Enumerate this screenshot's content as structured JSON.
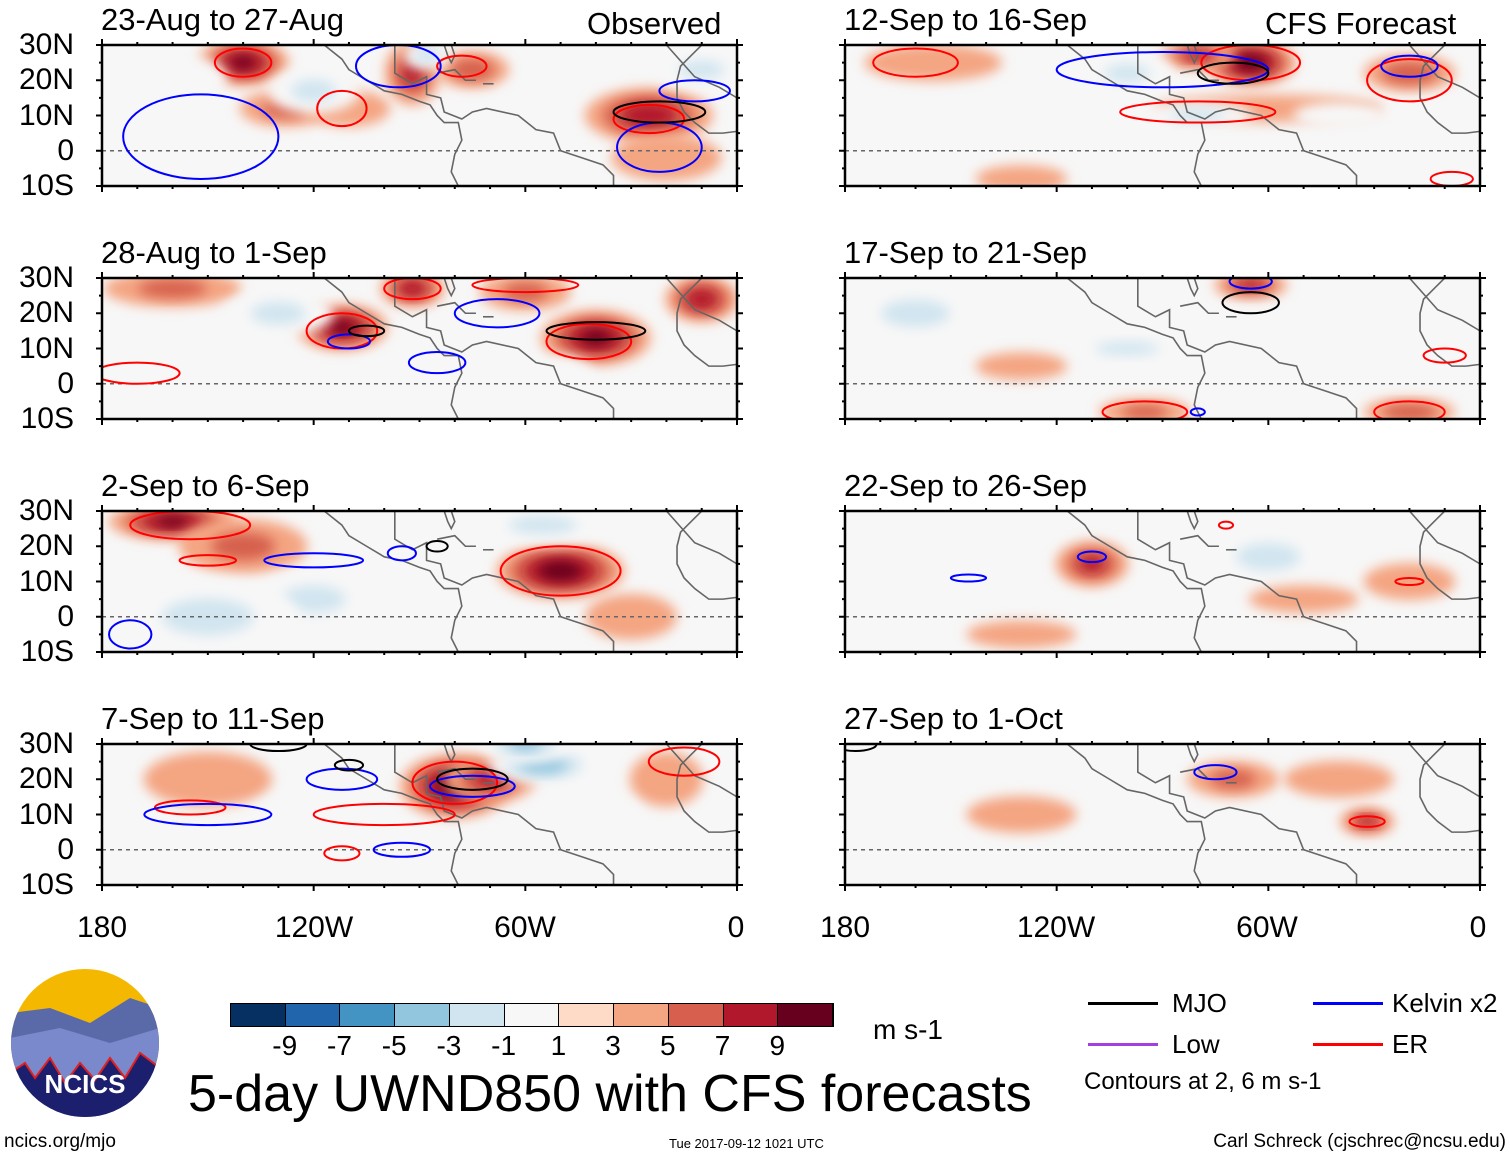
{
  "colorbar": {
    "colors": [
      "#053061",
      "#2166ac",
      "#4393c3",
      "#92c5de",
      "#d1e5f0",
      "#f7f7f7",
      "#fddbc7",
      "#f4a582",
      "#d6604d",
      "#b2182b",
      "#67001f"
    ],
    "labels": [
      "-9",
      "-7",
      "-5",
      "-3",
      "-1",
      "1",
      "3",
      "5",
      "7",
      "9"
    ],
    "units": "m s-1"
  },
  "title": "5-day UWND850 with CFS forecasts",
  "logo_text": "NCICS",
  "footer": {
    "url": "ncics.org/mjo",
    "timestamp": "Tue 2017-09-12 1021 UTC",
    "author": "Carl Schreck (cjschrec@ncsu.edu)"
  },
  "legend": {
    "mjo": "MJO",
    "kelvin": "Kelvin x2",
    "low": "Low",
    "er": "ER",
    "note": "Contours at 2, 6 m s-1",
    "colors": {
      "mjo": "#000000",
      "kelvin": "#0000ff",
      "low": "#a040e0",
      "er": "#ff0000"
    }
  },
  "axes": {
    "lat_labels": [
      "30N",
      "20N",
      "10N",
      "0",
      "10S"
    ],
    "lon_labels": [
      "180",
      "120W",
      "60W",
      "0"
    ]
  },
  "column_labels": {
    "left": "Observed",
    "right": "CFS Forecast"
  },
  "chart_data": {
    "type": "heatmap",
    "variable": "850-hPa zonal wind anomaly",
    "units": "m s-1",
    "lon_range": [
      -180,
      0
    ],
    "lat_range": [
      -10,
      30
    ],
    "panels": [
      {
        "title": "23-Aug to 27-Aug",
        "col": 0,
        "row": 0,
        "anoms": [
          [
            -140,
            25,
            10,
            5,
            7
          ],
          [
            -128,
            12,
            10,
            4,
            3
          ],
          [
            -92,
            22,
            6,
            7,
            5
          ],
          [
            -25,
            10,
            14,
            6,
            6
          ],
          [
            -110,
            12,
            9,
            4,
            2
          ],
          [
            -20,
            -2,
            12,
            5,
            2
          ],
          [
            -75,
            23,
            8,
            4,
            4
          ],
          [
            -120,
            17,
            10,
            5,
            -3
          ],
          [
            -88,
            27,
            5,
            3,
            -4
          ],
          [
            -10,
            23,
            10,
            4,
            -3
          ],
          [
            -160,
            20,
            12,
            6,
            -2
          ],
          [
            -60,
            5,
            6,
            4,
            -2
          ]
        ],
        "contours": [
          [
            "er",
            -140,
            25,
            8,
            4
          ],
          [
            "er",
            -112,
            12,
            7,
            5
          ],
          [
            "er",
            -78,
            24,
            7,
            3
          ],
          [
            "er",
            -25,
            9,
            10,
            4
          ],
          [
            "kelvin",
            -152,
            4,
            22,
            12
          ],
          [
            "kelvin",
            -96,
            24,
            12,
            6
          ],
          [
            "kelvin",
            -22,
            1,
            12,
            7
          ],
          [
            "kelvin",
            -12,
            17,
            10,
            3
          ],
          [
            "mjo",
            -22,
            11,
            13,
            3
          ]
        ]
      },
      {
        "title": "28-Aug to 1-Sep",
        "col": 0,
        "row": 1,
        "anoms": [
          [
            -112,
            16,
            10,
            5,
            7
          ],
          [
            -92,
            27,
            7,
            4,
            6
          ],
          [
            -40,
            13,
            12,
            6,
            7
          ],
          [
            -10,
            24,
            8,
            5,
            6
          ],
          [
            -160,
            27,
            15,
            4,
            3
          ],
          [
            -60,
            26,
            10,
            4,
            3
          ],
          [
            -130,
            20,
            12,
            5,
            -3
          ],
          [
            -80,
            -5,
            10,
            4,
            -2
          ],
          [
            -150,
            -5,
            15,
            5,
            -2
          ],
          [
            -50,
            0,
            8,
            6,
            -1
          ]
        ],
        "contours": [
          [
            "er",
            -112,
            15,
            10,
            5
          ],
          [
            "er",
            -92,
            27,
            8,
            3
          ],
          [
            "er",
            -42,
            12,
            12,
            5
          ],
          [
            "er",
            -170,
            3,
            12,
            3
          ],
          [
            "er",
            -60,
            28,
            15,
            2
          ],
          [
            "kelvin",
            -110,
            12,
            6,
            2
          ],
          [
            "kelvin",
            -68,
            20,
            12,
            4
          ],
          [
            "kelvin",
            -85,
            6,
            8,
            3
          ],
          [
            "mjo",
            -105,
            15,
            5,
            1.5
          ],
          [
            "mjo",
            -40,
            15,
            14,
            2.5
          ]
        ]
      },
      {
        "title": "2-Sep to 6-Sep",
        "col": 0,
        "row": 2,
        "anoms": [
          [
            -160,
            27,
            14,
            4,
            7
          ],
          [
            -50,
            13,
            14,
            6,
            8
          ],
          [
            -140,
            20,
            14,
            6,
            3
          ],
          [
            -120,
            5,
            14,
            6,
            -3
          ],
          [
            -150,
            0,
            20,
            8,
            -3
          ],
          [
            -55,
            26,
            15,
            4,
            -3
          ],
          [
            -90,
            -5,
            10,
            4,
            -2
          ],
          [
            -30,
            0,
            10,
            5,
            2
          ]
        ],
        "contours": [
          [
            "er",
            -155,
            26,
            17,
            4
          ],
          [
            "er",
            -50,
            13,
            17,
            7
          ],
          [
            "er",
            -150,
            16,
            8,
            1.5
          ],
          [
            "kelvin",
            -120,
            16,
            14,
            2
          ],
          [
            "kelvin",
            -95,
            18,
            4,
            2
          ],
          [
            "kelvin",
            -172,
            -5,
            6,
            4
          ],
          [
            "mjo",
            -85,
            20,
            3,
            1.5
          ]
        ]
      },
      {
        "title": "7-Sep to 11-Sep",
        "col": 0,
        "row": 3,
        "anoms": [
          [
            -80,
            18,
            12,
            7,
            8
          ],
          [
            -70,
            20,
            10,
            5,
            5
          ],
          [
            -55,
            24,
            12,
            4,
            -6
          ],
          [
            -60,
            30,
            10,
            4,
            -5
          ],
          [
            -150,
            20,
            14,
            6,
            2
          ],
          [
            -120,
            10,
            14,
            4,
            -2
          ],
          [
            -20,
            20,
            8,
            6,
            2
          ],
          [
            -40,
            10,
            10,
            4,
            -2
          ]
        ],
        "contours": [
          [
            "er",
            -80,
            19,
            12,
            6
          ],
          [
            "er",
            -100,
            10,
            20,
            3
          ],
          [
            "er",
            -155,
            12,
            10,
            2
          ],
          [
            "er",
            -15,
            25,
            10,
            4
          ],
          [
            "er",
            -112,
            -1,
            5,
            2
          ],
          [
            "kelvin",
            -112,
            20,
            10,
            3
          ],
          [
            "kelvin",
            -150,
            10,
            18,
            3
          ],
          [
            "kelvin",
            -75,
            18,
            12,
            3
          ],
          [
            "kelvin",
            -95,
            0,
            8,
            2
          ],
          [
            "mjo",
            -75,
            20,
            10,
            3
          ],
          [
            "mjo",
            -110,
            24,
            4,
            1.5
          ],
          [
            "mjo",
            -130,
            30,
            8,
            2
          ]
        ]
      },
      {
        "title": "12-Sep to 16-Sep",
        "col": 1,
        "row": 0,
        "anoms": [
          [
            -65,
            25,
            10,
            5,
            8
          ],
          [
            -80,
            27,
            8,
            3,
            5
          ],
          [
            -20,
            22,
            10,
            4,
            4
          ],
          [
            -60,
            12,
            25,
            3,
            2
          ],
          [
            -155,
            25,
            15,
            4,
            2
          ],
          [
            -100,
            22,
            10,
            4,
            -3
          ],
          [
            -80,
            10,
            12,
            3,
            -3
          ],
          [
            -40,
            10,
            10,
            3,
            -2
          ],
          [
            -100,
            3,
            10,
            4,
            -2
          ],
          [
            -130,
            -8,
            10,
            3,
            2
          ]
        ],
        "contours": [
          [
            "er",
            -65,
            25,
            14,
            5
          ],
          [
            "er",
            -80,
            11,
            22,
            3
          ],
          [
            "er",
            -20,
            20,
            12,
            6
          ],
          [
            "er",
            -160,
            25,
            12,
            4
          ],
          [
            "kelvin",
            -90,
            23,
            30,
            5
          ],
          [
            "kelvin",
            -20,
            24,
            8,
            3
          ],
          [
            "mjo",
            -70,
            22,
            10,
            3
          ],
          [
            "er",
            -8,
            -8,
            6,
            2
          ]
        ]
      },
      {
        "title": "17-Sep to 21-Sep",
        "col": 1,
        "row": 1,
        "anoms": [
          [
            -65,
            28,
            8,
            3,
            5
          ],
          [
            -160,
            20,
            15,
            6,
            -3
          ],
          [
            -40,
            15,
            14,
            6,
            -2
          ],
          [
            -100,
            10,
            14,
            3,
            -3
          ],
          [
            -20,
            -8,
            10,
            3,
            4
          ],
          [
            -95,
            -8,
            10,
            3,
            3
          ],
          [
            -130,
            5,
            10,
            3,
            2
          ]
        ],
        "contours": [
          [
            "mjo",
            -65,
            23,
            8,
            3
          ],
          [
            "er",
            -20,
            -8,
            10,
            3
          ],
          [
            "er",
            -95,
            -8,
            12,
            3
          ],
          [
            "er",
            -10,
            8,
            6,
            2
          ],
          [
            "kelvin",
            -65,
            29,
            6,
            2
          ],
          [
            "kelvin",
            -80,
            -8,
            2,
            1
          ]
        ]
      },
      {
        "title": "22-Sep to 26-Sep",
        "col": 1,
        "row": 2,
        "anoms": [
          [
            -110,
            15,
            8,
            5,
            5
          ],
          [
            -60,
            17,
            14,
            6,
            -3
          ],
          [
            -150,
            5,
            14,
            6,
            -2
          ],
          [
            -100,
            0,
            12,
            3,
            -2
          ],
          [
            -50,
            5,
            12,
            3,
            2
          ],
          [
            -130,
            -5,
            12,
            3,
            2
          ],
          [
            -20,
            10,
            10,
            4,
            2
          ]
        ],
        "contours": [
          [
            "kelvin",
            -110,
            17,
            4,
            1.5
          ],
          [
            "kelvin",
            -145,
            11,
            5,
            1
          ],
          [
            "er",
            -20,
            10,
            4,
            1
          ],
          [
            "er",
            -72,
            26,
            2,
            1
          ]
        ]
      },
      {
        "title": "27-Sep to 1-Oct",
        "col": 1,
        "row": 3,
        "anoms": [
          [
            -32,
            8,
            6,
            3,
            5
          ],
          [
            -70,
            20,
            10,
            4,
            3
          ],
          [
            -130,
            10,
            12,
            4,
            2
          ],
          [
            -40,
            20,
            12,
            4,
            2
          ],
          [
            -100,
            0,
            14,
            5,
            -2
          ],
          [
            -150,
            -5,
            14,
            4,
            -2
          ]
        ],
        "contours": [
          [
            "er",
            -32,
            8,
            5,
            1.5
          ],
          [
            "kelvin",
            -75,
            22,
            6,
            2
          ],
          [
            "mjo",
            -177,
            30,
            6,
            2
          ]
        ]
      }
    ]
  }
}
